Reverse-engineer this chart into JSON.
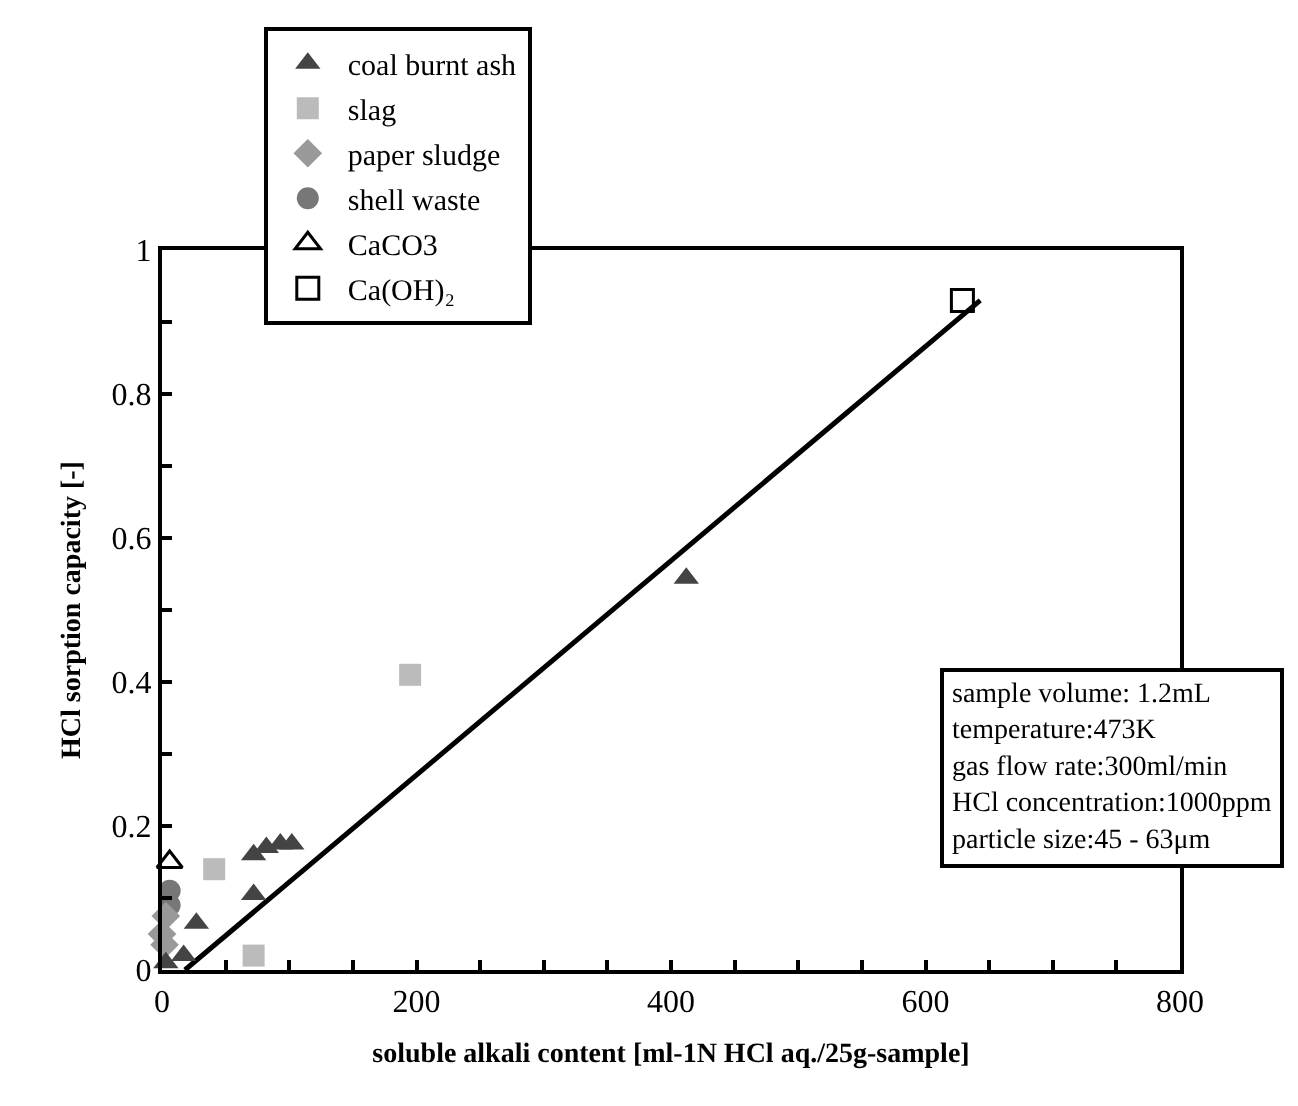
{
  "chart_data": {
    "type": "scatter",
    "xlabel": "soluble alkali content [ml-1N HCl aq./25g-sample]",
    "ylabel": "HCl sorption capacity [-]",
    "xlim": [
      0,
      800
    ],
    "ylim": [
      0,
      1
    ],
    "xticks": [
      0,
      {
        "value": 50,
        "label": null
      },
      {
        "value": 100,
        "label": null
      },
      {
        "value": 150,
        "label": null
      },
      200,
      {
        "value": 250,
        "label": null
      },
      {
        "value": 300,
        "label": null
      },
      {
        "value": 350,
        "label": null
      },
      400,
      {
        "value": 450,
        "label": null
      },
      {
        "value": 500,
        "label": null
      },
      {
        "value": 550,
        "label": null
      },
      600,
      {
        "value": 650,
        "label": null
      },
      {
        "value": 700,
        "label": null
      },
      {
        "value": 750,
        "label": null
      },
      800
    ],
    "yticks": [
      0,
      {
        "value": 0.1,
        "label": null
      },
      0.2,
      {
        "value": 0.3,
        "label": null
      },
      0.4,
      {
        "value": 0.5,
        "label": null
      },
      0.6,
      {
        "value": 0.7,
        "label": null
      },
      0.8,
      {
        "value": 0.9,
        "label": null
      },
      1
    ],
    "grid": false,
    "legend": "top left",
    "series": [
      {
        "name": "coal burnt ash",
        "color": "#444444",
        "marker": "triangle",
        "x": [
          3,
          17,
          27,
          72,
          72,
          82,
          93,
          102,
          412
        ],
        "values": [
          0.01,
          0.02,
          0.065,
          0.105,
          0.16,
          0.17,
          0.175,
          0.175,
          0.544
        ]
      },
      {
        "name": "slag",
        "color": "#bbbbbb",
        "marker": "square",
        "x": [
          41,
          72,
          195
        ],
        "values": [
          0.14,
          0.02,
          0.41
        ]
      },
      {
        "name": "paper sludge",
        "color": "#999999",
        "marker": "diamond",
        "x": [
          3,
          0,
          2
        ],
        "values": [
          0.075,
          0.05,
          0.035
        ]
      },
      {
        "name": "shell waste",
        "color": "#777777",
        "marker": "circle",
        "x": [
          6,
          6
        ],
        "values": [
          0.11,
          0.09
        ]
      },
      {
        "name": "CaCO3",
        "color": "#000000",
        "marker": "triangle",
        "x": [
          6
        ],
        "values": [
          0.15
        ]
      },
      {
        "name": "Ca(OH)₂",
        "color": "#000000",
        "marker": "square",
        "x": [
          629
        ],
        "values": [
          0.93
        ]
      },
      {
        "type": "line",
        "color": "#000000",
        "marker": "none",
        "line_style": "solid",
        "x": [
          18,
          643
        ],
        "values": [
          0,
          0.93
        ]
      }
    ],
    "annotations": [
      "sample volume: 1.2mL\ntemperature:473K\ngas flow rate:300ml/min\nHCl concentration:1000ppm\nparticle size:45 - 63μm"
    ]
  }
}
